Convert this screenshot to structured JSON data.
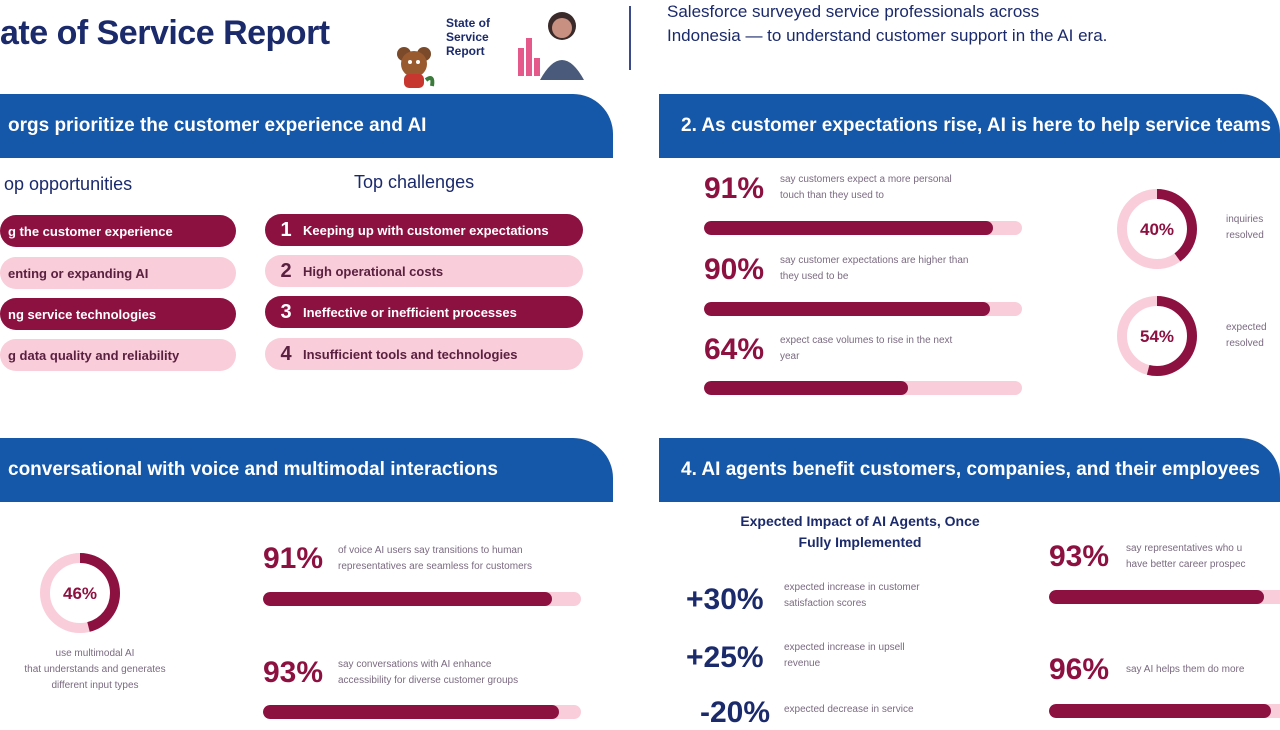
{
  "header": {
    "title": "ate of Service Report",
    "badge_lines": [
      "State of",
      "Service",
      "Report"
    ],
    "intro_lines": [
      "Salesforce surveyed service professionals across",
      "Indonesia — to understand customer support in the AI era."
    ]
  },
  "section1": {
    "band": "orgs prioritize the customer experience and AI",
    "opportunities_heading": "op opportunities",
    "opportunities": [
      {
        "label": "g the customer experience",
        "style": "dark"
      },
      {
        "label": "enting or expanding AI",
        "style": "light"
      },
      {
        "label": "ng service technologies",
        "style": "dark"
      },
      {
        "label": "g data quality and reliability",
        "style": "light"
      }
    ],
    "challenges_heading": "Top challenges",
    "challenges": [
      {
        "num": "1",
        "label": "Keeping up with customer expectations",
        "style": "dark"
      },
      {
        "num": "2",
        "label": "High operational costs",
        "style": "light"
      },
      {
        "num": "3",
        "label": "Ineffective or inefficient processes",
        "style": "dark"
      },
      {
        "num": "4",
        "label": "Insufficient tools and technologies",
        "style": "light"
      }
    ]
  },
  "section2": {
    "band": "2. As customer expectations rise, AI is here to help service teams",
    "stats": [
      {
        "value": "91%",
        "fill": 91,
        "text_lines": [
          "say customers expect a more personal",
          "touch than they used to"
        ]
      },
      {
        "value": "90%",
        "fill": 90,
        "text_lines": [
          "say customer expectations are higher than",
          "they used to be"
        ]
      },
      {
        "value": "64%",
        "fill": 64,
        "text_lines": [
          "expect case volumes to rise in the next",
          "year"
        ]
      }
    ],
    "donuts": [
      {
        "label": "40%",
        "value": 40,
        "side_lines": [
          "inquiries",
          "resolved"
        ]
      },
      {
        "label": "54%",
        "value": 54,
        "side_lines": [
          "expected",
          "resolved"
        ]
      }
    ]
  },
  "section3": {
    "band": "conversational with voice and multimodal interactions",
    "donut": {
      "label": "46%",
      "value": 46
    },
    "donut_caption_lines": [
      "use multimodal AI",
      "that understands and generates",
      "different input types"
    ],
    "stats": [
      {
        "value": "91%",
        "fill": 91,
        "text_lines": [
          "of voice AI users say transitions to human",
          "representatives are seamless for customers"
        ]
      },
      {
        "value": "93%",
        "fill": 93,
        "text_lines": [
          "say conversations with AI enhance",
          "accessibility for diverse customer groups"
        ]
      }
    ]
  },
  "section4": {
    "band": "4. AI agents benefit customers, companies, and their employees",
    "impact_title_lines": [
      "Expected Impact of AI Agents, Once",
      "Fully Implemented"
    ],
    "impacts": [
      {
        "value": "+30%",
        "text_lines": [
          "expected increase in customer",
          "satisfaction scores"
        ]
      },
      {
        "value": "+25%",
        "text_lines": [
          "expected increase in upsell",
          "revenue"
        ]
      },
      {
        "value": "-20%",
        "text_lines": [
          "expected decrease in service",
          ""
        ]
      }
    ],
    "stats": [
      {
        "value": "93%",
        "fill": 93,
        "text_lines": [
          "say representatives who u",
          "have better career prospec"
        ]
      },
      {
        "value": "96%",
        "fill": 96,
        "text_lines": [
          "say AI helps them do more",
          ""
        ]
      }
    ]
  },
  "colors": {
    "band": "#1557a8",
    "accent": "#8c1140",
    "accent_light": "#f9cdd9",
    "navy": "#1b2a6b"
  }
}
